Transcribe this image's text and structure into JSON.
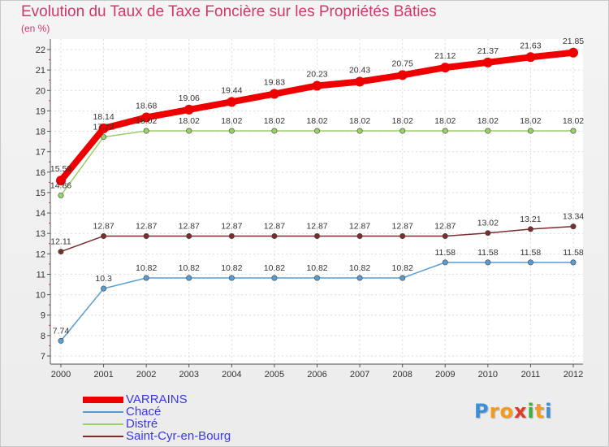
{
  "chart_data": {
    "type": "line",
    "title": "Evolution du Taux de Taxe Foncière sur les Propriétés Bâties",
    "ylabel": "(en %)",
    "xlabel": "",
    "x": [
      "2000",
      "2001",
      "2002",
      "2003",
      "2004",
      "2005",
      "2006",
      "2007",
      "2008",
      "2009",
      "2010",
      "2011",
      "2012"
    ],
    "ylim": [
      7,
      22
    ],
    "yticks": [
      "7",
      "8",
      "9",
      "10",
      "11",
      "12",
      "13",
      "14",
      "15",
      "16",
      "17",
      "18",
      "19",
      "20",
      "21",
      "22"
    ],
    "grid": true,
    "legend_position": "bottom-left",
    "series": [
      {
        "name": "VARRAINS",
        "color": "#ee0000",
        "values": [
          15.59,
          18.14,
          18.68,
          19.06,
          19.44,
          19.83,
          20.23,
          20.43,
          20.75,
          21.12,
          21.37,
          21.63,
          21.85
        ],
        "labels": [
          "15.59",
          "18.14",
          "18.68",
          "19.06",
          "19.44",
          "19.83",
          "20.23",
          "20.43",
          "20.75",
          "21.12",
          "21.37",
          "21.63",
          "21.85"
        ]
      },
      {
        "name": "Chacé",
        "color": "#5a9bd0",
        "values": [
          7.74,
          10.3,
          10.82,
          10.82,
          10.82,
          10.82,
          10.82,
          10.82,
          10.82,
          11.58,
          11.58,
          11.58,
          11.58
        ],
        "labels": [
          "7.74",
          "10.3",
          "10.82",
          "10.82",
          "10.82",
          "10.82",
          "10.82",
          "10.82",
          "10.82",
          "11.58",
          "11.58",
          "11.58",
          "11.58"
        ]
      },
      {
        "name": "Distré",
        "color": "#99d068",
        "values": [
          14.86,
          17.72,
          18.02,
          18.02,
          18.02,
          18.02,
          18.02,
          18.02,
          18.02,
          18.02,
          18.02,
          18.02,
          18.02
        ],
        "labels": [
          "14.86",
          "17.72",
          "18.02",
          "18.02",
          "18.02",
          "18.02",
          "18.02",
          "18.02",
          "18.02",
          "18.02",
          "18.02",
          "18.02",
          "18.02"
        ]
      },
      {
        "name": "Saint-Cyr-en-Bourg",
        "color": "#7b2d2d",
        "values": [
          12.11,
          12.87,
          12.87,
          12.87,
          12.87,
          12.87,
          12.87,
          12.87,
          12.87,
          12.87,
          13.02,
          13.21,
          13.34
        ],
        "labels": [
          "12.11",
          "12.87",
          "12.87",
          "12.87",
          "12.87",
          "12.87",
          "12.87",
          "12.87",
          "12.87",
          "12.87",
          "13.02",
          "13.21",
          "13.34"
        ]
      }
    ]
  },
  "logo": {
    "letters": [
      "P",
      "r",
      "o",
      "x",
      "i",
      "t",
      "i"
    ],
    "colors": [
      "#3b8fd9",
      "#f59a1b",
      "#f59a1b",
      "#e03a2a",
      "#3fae3f",
      "#f59a1b",
      "#3b8fd9"
    ]
  }
}
